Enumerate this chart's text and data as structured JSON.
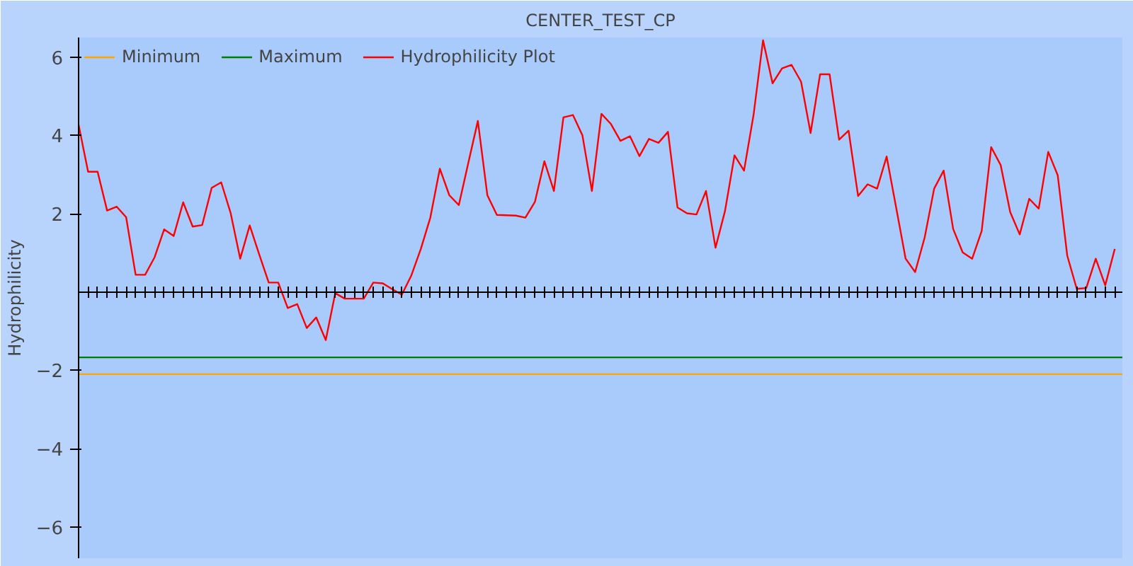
{
  "chart_data": {
    "type": "line",
    "title": "CENTER_TEST_CP",
    "ylabel": "Hydrophilicity",
    "categories": [
      null,
      null,
      null,
      null,
      null,
      null,
      null,
      null,
      null,
      null,
      null,
      null,
      null,
      null,
      null,
      null,
      null,
      null,
      null,
      null,
      null,
      null,
      null,
      null,
      null,
      null,
      null,
      null,
      null,
      null,
      null,
      null,
      null,
      null,
      null,
      null,
      null,
      null,
      null,
      null,
      null,
      null,
      null,
      null,
      null,
      null,
      null,
      null,
      null,
      null,
      null,
      null,
      null,
      null,
      null,
      null,
      null,
      null,
      null,
      null,
      null,
      null,
      null,
      null,
      null,
      null,
      null,
      null,
      null,
      null,
      null,
      null,
      null,
      null,
      null,
      null,
      null,
      null,
      null,
      null,
      null,
      null,
      null,
      null,
      null,
      null,
      null,
      null,
      null,
      null,
      null,
      null,
      null,
      null,
      null,
      null,
      null,
      null,
      null,
      null,
      null,
      null,
      null,
      null,
      null,
      null,
      null,
      null,
      null,
      null
    ],
    "series": [
      {
        "name": "Hydrophilicity Plot",
        "color": "#ff0000",
        "values": [
          4.27,
          3.07,
          3.07,
          2.08,
          2.18,
          1.91,
          0.44,
          0.44,
          0.89,
          1.6,
          1.43,
          2.29,
          1.67,
          1.71,
          2.66,
          2.8,
          2.01,
          0.85,
          1.7,
          0.96,
          0.24,
          0.24,
          -0.41,
          -0.31,
          -0.92,
          -0.65,
          -1.23,
          -0.03,
          -0.17,
          -0.17,
          -0.17,
          0.24,
          0.22,
          0.07,
          -0.07,
          0.42,
          1.1,
          1.9,
          3.15,
          2.47,
          2.22,
          3.3,
          4.37,
          2.47,
          1.97,
          1.96,
          1.95,
          1.9,
          2.3,
          3.34,
          2.58,
          4.46,
          4.52,
          4.0,
          2.58,
          4.55,
          4.29,
          3.86,
          3.98,
          3.47,
          3.91,
          3.81,
          4.09,
          2.16,
          2.01,
          1.98,
          2.58,
          1.13,
          2.07,
          3.49,
          3.1,
          4.52,
          6.43,
          5.33,
          5.71,
          5.8,
          5.37,
          4.06,
          5.56,
          5.56,
          3.89,
          4.12,
          2.45,
          2.75,
          2.64,
          3.46,
          2.16,
          0.85,
          0.51,
          1.39,
          2.64,
          3.1,
          1.61,
          1.01,
          0.85,
          1.56,
          3.7,
          3.24,
          2.04,
          1.47,
          2.38,
          2.13,
          3.58,
          2.98,
          0.93,
          0.08,
          0.1,
          0.85,
          0.17,
          1.1
        ]
      }
    ],
    "ref_lines": [
      {
        "axis": "y",
        "value": -2.1,
        "label": "Minimum",
        "color": "#ffa500",
        "line_style": "solid"
      },
      {
        "axis": "y",
        "value": -1.67,
        "label": "Maximum",
        "color": "#008000",
        "line_style": "solid"
      }
    ],
    "ylim": [
      -6.8,
      6.5
    ],
    "yticks": [
      -6,
      -4,
      -2,
      2,
      4,
      6
    ],
    "tick_labels": "y",
    "grid": false,
    "legend": "top left",
    "marker": "none",
    "line_style": "solid"
  }
}
